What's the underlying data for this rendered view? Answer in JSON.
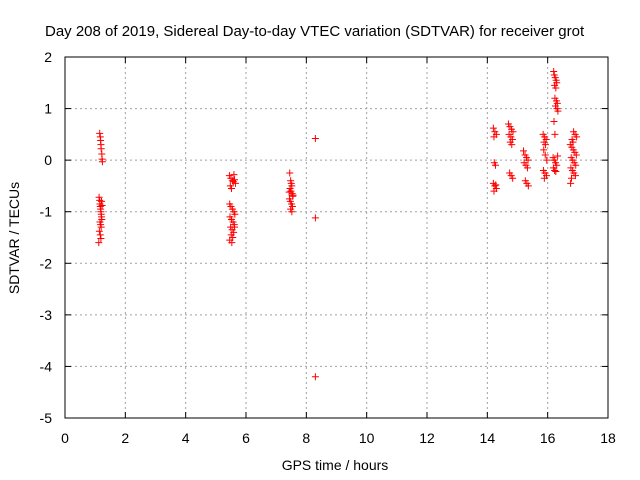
{
  "chart_data": {
    "type": "scatter",
    "title": "Day 208 of 2019, Sidereal Day-to-day VTEC variation (SDTVAR) for receiver grot",
    "xlabel": "GPS time / hours",
    "ylabel": "SDTVAR / TECUs",
    "xlim": [
      0,
      18
    ],
    "ylim": [
      -5,
      2
    ],
    "xticks": [
      "0",
      "2",
      "4",
      "6",
      "8",
      "10",
      "12",
      "14",
      "16",
      "18"
    ],
    "yticks": [
      "2",
      "1",
      "0",
      "-1",
      "-2",
      "-3",
      "-4",
      "-5"
    ],
    "grid": true,
    "marker": "+",
    "color": "#ff0000",
    "series": [
      {
        "name": "SDTVAR",
        "points": [
          [
            1.15,
            0.52
          ],
          [
            1.17,
            0.45
          ],
          [
            1.18,
            0.38
          ],
          [
            1.19,
            0.3
          ],
          [
            1.2,
            0.22
          ],
          [
            1.22,
            0.12
          ],
          [
            1.23,
            0.02
          ],
          [
            1.24,
            -0.03
          ],
          [
            1.13,
            -0.72
          ],
          [
            1.15,
            -0.78
          ],
          [
            1.16,
            -0.85
          ],
          [
            1.17,
            -0.9
          ],
          [
            1.18,
            -0.95
          ],
          [
            1.19,
            -1.0
          ],
          [
            1.2,
            -1.05
          ],
          [
            1.21,
            -1.1
          ],
          [
            1.22,
            -1.15
          ],
          [
            1.16,
            -1.2
          ],
          [
            1.18,
            -1.25
          ],
          [
            1.2,
            -1.3
          ],
          [
            1.14,
            -1.38
          ],
          [
            1.17,
            -1.45
          ],
          [
            1.19,
            -1.52
          ],
          [
            1.21,
            -0.8
          ],
          [
            1.23,
            -0.88
          ],
          [
            1.12,
            -1.6
          ],
          [
            5.45,
            -0.3
          ],
          [
            5.5,
            -0.35
          ],
          [
            5.55,
            -0.4
          ],
          [
            5.6,
            -0.28
          ],
          [
            5.65,
            -0.45
          ],
          [
            5.48,
            -0.5
          ],
          [
            5.52,
            -0.55
          ],
          [
            5.58,
            -0.42
          ],
          [
            5.62,
            -0.38
          ],
          [
            5.46,
            -0.85
          ],
          [
            5.5,
            -0.9
          ],
          [
            5.55,
            -0.95
          ],
          [
            5.6,
            -1.0
          ],
          [
            5.63,
            -1.05
          ],
          [
            5.47,
            -1.1
          ],
          [
            5.52,
            -1.15
          ],
          [
            5.57,
            -1.2
          ],
          [
            5.61,
            -1.25
          ],
          [
            5.49,
            -1.3
          ],
          [
            5.54,
            -1.35
          ],
          [
            5.59,
            -1.4
          ],
          [
            5.62,
            -1.3
          ],
          [
            5.51,
            -1.45
          ],
          [
            5.56,
            -1.5
          ],
          [
            5.46,
            -1.55
          ],
          [
            5.53,
            -1.6
          ],
          [
            7.45,
            -0.25
          ],
          [
            7.48,
            -0.4
          ],
          [
            7.5,
            -0.45
          ],
          [
            7.52,
            -0.5
          ],
          [
            7.46,
            -0.55
          ],
          [
            7.49,
            -0.6
          ],
          [
            7.53,
            -0.65
          ],
          [
            7.55,
            -0.7
          ],
          [
            7.44,
            -0.75
          ],
          [
            7.47,
            -0.8
          ],
          [
            7.51,
            -0.85
          ],
          [
            7.54,
            -0.9
          ],
          [
            7.48,
            -0.95
          ],
          [
            7.52,
            -1.0
          ],
          [
            7.56,
            -0.68
          ],
          [
            7.43,
            -0.62
          ],
          [
            8.3,
            0.42
          ],
          [
            8.3,
            -1.12
          ],
          [
            8.3,
            -4.2
          ],
          [
            14.2,
            0.62
          ],
          [
            14.25,
            0.55
          ],
          [
            14.3,
            0.5
          ],
          [
            14.22,
            0.45
          ],
          [
            14.27,
            -0.1
          ],
          [
            14.23,
            -0.05
          ],
          [
            14.2,
            -0.45
          ],
          [
            14.25,
            -0.5
          ],
          [
            14.3,
            -0.55
          ],
          [
            14.22,
            -0.6
          ],
          [
            14.28,
            -0.48
          ],
          [
            14.7,
            0.7
          ],
          [
            14.75,
            0.65
          ],
          [
            14.8,
            0.6
          ],
          [
            14.85,
            0.55
          ],
          [
            14.72,
            0.5
          ],
          [
            14.78,
            0.45
          ],
          [
            14.83,
            0.4
          ],
          [
            14.76,
            0.35
          ],
          [
            14.81,
            0.3
          ],
          [
            14.74,
            -0.25
          ],
          [
            14.79,
            -0.3
          ],
          [
            14.84,
            -0.35
          ],
          [
            15.2,
            0.18
          ],
          [
            15.25,
            0.1
          ],
          [
            15.3,
            0.05
          ],
          [
            15.35,
            0.0
          ],
          [
            15.22,
            -0.05
          ],
          [
            15.28,
            -0.1
          ],
          [
            15.33,
            -0.15
          ],
          [
            15.26,
            -0.4
          ],
          [
            15.31,
            -0.45
          ],
          [
            15.36,
            -0.5
          ],
          [
            15.85,
            0.5
          ],
          [
            15.9,
            0.45
          ],
          [
            15.95,
            0.4
          ],
          [
            15.88,
            0.35
          ],
          [
            15.93,
            0.3
          ],
          [
            15.87,
            0.2
          ],
          [
            15.92,
            0.1
          ],
          [
            15.97,
            0.0
          ],
          [
            15.86,
            -0.2
          ],
          [
            15.91,
            -0.25
          ],
          [
            15.96,
            -0.3
          ],
          [
            15.89,
            -0.35
          ],
          [
            16.2,
            1.72
          ],
          [
            16.22,
            1.65
          ],
          [
            16.25,
            1.6
          ],
          [
            16.28,
            1.55
          ],
          [
            16.3,
            1.5
          ],
          [
            16.23,
            1.45
          ],
          [
            16.27,
            1.4
          ],
          [
            16.24,
            1.2
          ],
          [
            16.29,
            1.15
          ],
          [
            16.32,
            1.1
          ],
          [
            16.26,
            1.05
          ],
          [
            16.31,
            1.0
          ],
          [
            16.34,
            0.95
          ],
          [
            16.21,
            0.75
          ],
          [
            16.24,
            0.5
          ],
          [
            16.18,
            0.05
          ],
          [
            16.22,
            0.0
          ],
          [
            16.26,
            -0.05
          ],
          [
            16.3,
            -0.1
          ],
          [
            16.19,
            -0.15
          ],
          [
            16.23,
            -0.2
          ],
          [
            16.27,
            -0.22
          ],
          [
            16.33,
            0.08
          ],
          [
            16.75,
            0.3
          ],
          [
            16.8,
            0.25
          ],
          [
            16.85,
            0.2
          ],
          [
            16.9,
            0.15
          ],
          [
            16.95,
            0.1
          ],
          [
            16.78,
            0.05
          ],
          [
            16.83,
            0.0
          ],
          [
            16.88,
            -0.05
          ],
          [
            16.93,
            -0.1
          ],
          [
            16.77,
            -0.15
          ],
          [
            16.82,
            -0.2
          ],
          [
            16.87,
            -0.25
          ],
          [
            16.92,
            -0.3
          ],
          [
            16.76,
            -0.45
          ],
          [
            16.86,
            0.55
          ],
          [
            16.91,
            0.5
          ],
          [
            16.96,
            0.45
          ],
          [
            16.81,
            0.4
          ],
          [
            16.84,
            0.35
          ],
          [
            16.79,
            -0.35
          ]
        ]
      }
    ]
  }
}
